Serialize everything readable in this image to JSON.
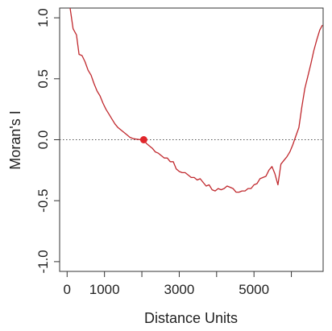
{
  "chart_data": {
    "type": "line",
    "title": "",
    "xlabel": "Distance Units",
    "ylabel": "Moran's I",
    "xlim": [
      -200,
      6850
    ],
    "ylim": [
      -1.08,
      1.08
    ],
    "x_ticks": [
      0,
      1000,
      2000,
      3000,
      4000,
      5000,
      6000
    ],
    "x_tick_labels": [
      "0",
      "1000",
      "",
      "3000",
      "",
      "5000",
      ""
    ],
    "y_ticks": [
      -1.0,
      -0.5,
      0.0,
      0.5,
      1.0
    ],
    "y_tick_labels": [
      "-1.0",
      "-0.5",
      "0.0",
      "0.5",
      "1.0"
    ],
    "reference_line": {
      "y": 0,
      "style": "dotted",
      "color": "#555555"
    },
    "highlight_point": {
      "x": 2050,
      "y": 0.0,
      "color": "#e0262b"
    },
    "grid": false,
    "line_color": "#c0282d",
    "series": [
      {
        "x": [
          80,
          160,
          250,
          320,
          400,
          480,
          560,
          640,
          720,
          800,
          880,
          960,
          1040,
          1120,
          1200,
          1280,
          1360,
          1440,
          1520,
          1600,
          1680,
          1760,
          1840,
          1920,
          2000,
          2050,
          2120,
          2200,
          2280,
          2360,
          2440,
          2520,
          2600,
          2680,
          2760,
          2840,
          2920,
          3000,
          3080,
          3160,
          3240,
          3320,
          3400,
          3480,
          3560,
          3640,
          3720,
          3800,
          3880,
          3960,
          4040,
          4120,
          4200,
          4280,
          4360,
          4440,
          4520,
          4600,
          4680,
          4760,
          4840,
          4920,
          5000,
          5080,
          5160,
          5240,
          5320,
          5400,
          5480,
          5560,
          5640,
          5720,
          5800,
          5880,
          5960,
          6040,
          6120,
          6200,
          6280,
          6360,
          6440,
          6520,
          6600,
          6680,
          6760,
          6830
        ],
        "y": [
          1.08,
          0.91,
          0.86,
          0.7,
          0.69,
          0.64,
          0.57,
          0.53,
          0.46,
          0.4,
          0.36,
          0.3,
          0.25,
          0.21,
          0.17,
          0.13,
          0.1,
          0.08,
          0.06,
          0.04,
          0.02,
          0.01,
          0.005,
          0.002,
          0.0,
          0.0,
          -0.03,
          -0.05,
          -0.07,
          -0.1,
          -0.11,
          -0.13,
          -0.15,
          -0.15,
          -0.18,
          -0.18,
          -0.24,
          -0.26,
          -0.27,
          -0.27,
          -0.29,
          -0.31,
          -0.31,
          -0.33,
          -0.32,
          -0.35,
          -0.38,
          -0.37,
          -0.41,
          -0.42,
          -0.4,
          -0.41,
          -0.4,
          -0.38,
          -0.39,
          -0.4,
          -0.43,
          -0.43,
          -0.42,
          -0.42,
          -0.4,
          -0.4,
          -0.37,
          -0.36,
          -0.32,
          -0.31,
          -0.3,
          -0.25,
          -0.22,
          -0.28,
          -0.37,
          -0.2,
          -0.17,
          -0.14,
          -0.1,
          -0.04,
          0.03,
          0.1,
          0.27,
          0.42,
          0.52,
          0.62,
          0.73,
          0.82,
          0.9,
          0.94
        ]
      }
    ]
  }
}
